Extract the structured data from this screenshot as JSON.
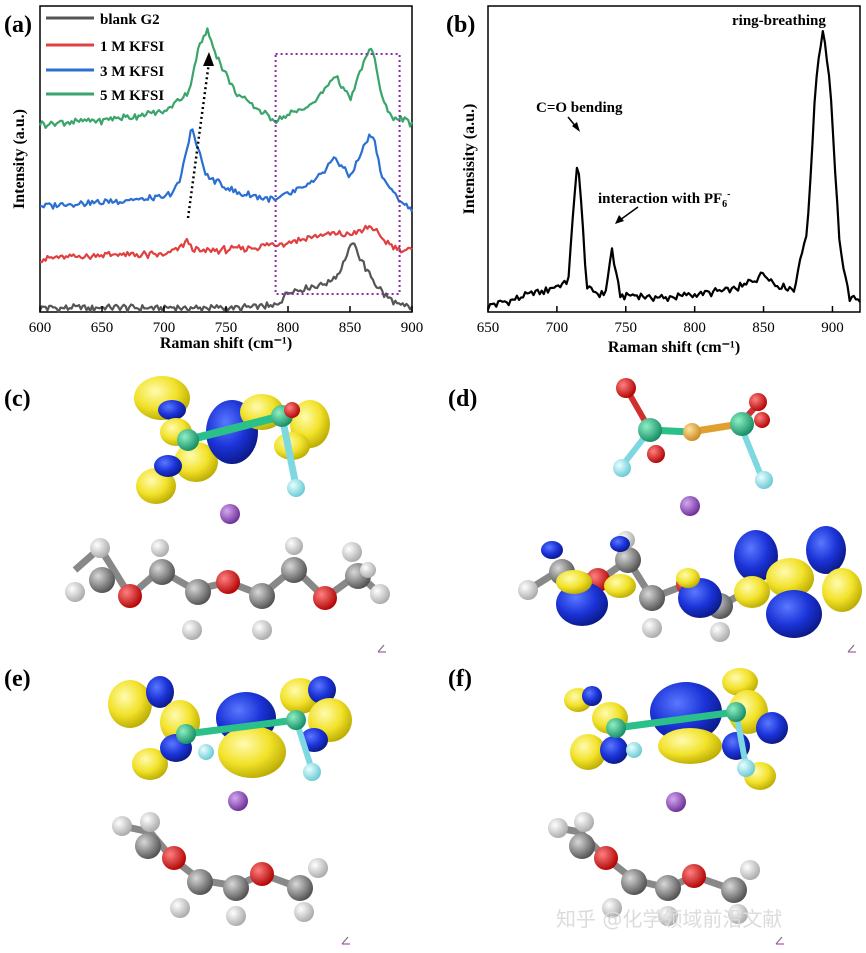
{
  "panel_labels": [
    "(a)",
    "(b)",
    "(c)",
    "(d)",
    "(e)",
    "(f)"
  ],
  "watermark": "知乎 @化学领域前沿文献",
  "chart_data": [
    {
      "type": "line",
      "panel": "(a)",
      "xlabel": "Raman shift (cm⁻¹)",
      "ylabel": "Intensity (a.u.)",
      "xlim": [
        600,
        900
      ],
      "xticks": [
        "600",
        "650",
        "700",
        "750",
        "800",
        "850",
        "900"
      ],
      "legend_position": "top-left",
      "highlight_box_x": [
        790,
        890
      ],
      "series": [
        {
          "name": "blank G2",
          "color": "#555555",
          "x": [
            600,
            700,
            760,
            790,
            800,
            830,
            840,
            852,
            862,
            870,
            880,
            890,
            900
          ],
          "y": [
            0.02,
            0.02,
            0.02,
            0.03,
            0.1,
            0.14,
            0.18,
            0.34,
            0.22,
            0.14,
            0.07,
            0.03,
            0.02
          ]
        },
        {
          "name": "1 M KFSI",
          "color": "#e04040",
          "x": [
            600,
            650,
            700,
            712,
            718,
            725,
            740,
            760,
            790,
            830,
            850,
            860,
            868,
            875,
            885,
            900
          ],
          "y": [
            0.26,
            0.28,
            0.28,
            0.31,
            0.35,
            0.3,
            0.3,
            0.31,
            0.33,
            0.38,
            0.38,
            0.4,
            0.42,
            0.36,
            0.32,
            0.3
          ]
        },
        {
          "name": "3 M KFSI",
          "color": "#2a6fd1",
          "x": [
            600,
            650,
            700,
            712,
            722,
            735,
            760,
            790,
            820,
            838,
            850,
            862,
            868,
            876,
            885,
            895,
            900
          ],
          "y": [
            0.52,
            0.54,
            0.56,
            0.62,
            0.9,
            0.66,
            0.58,
            0.55,
            0.63,
            0.76,
            0.66,
            0.82,
            0.88,
            0.66,
            0.58,
            0.52,
            0.5
          ]
        },
        {
          "name": "5 M KFSI",
          "color": "#3aa56a",
          "x": [
            600,
            650,
            700,
            720,
            728,
            735,
            745,
            760,
            790,
            820,
            838,
            850,
            862,
            868,
            876,
            885,
            895,
            900
          ],
          "y": [
            0.92,
            0.94,
            0.98,
            1.08,
            1.3,
            1.38,
            1.22,
            1.06,
            0.94,
            1.02,
            1.16,
            1.04,
            1.24,
            1.3,
            1.04,
            0.95,
            0.94,
            0.92
          ]
        }
      ]
    },
    {
      "type": "line",
      "panel": "(b)",
      "xlabel": "Raman shift (cm⁻¹)",
      "ylabel": "Intensisity (a.u.)",
      "xlim": [
        650,
        920
      ],
      "xticks": [
        "650",
        "700",
        "750",
        "800",
        "850",
        "900"
      ],
      "annotations": [
        {
          "text": "C=O bending",
          "x": 715,
          "y": 0.55
        },
        {
          "text": "interaction with PF",
          "sub": "6",
          "sup": "-",
          "x": 740,
          "y": 0.22
        },
        {
          "text": "ring-breathing",
          "x": 893,
          "y": 1.0
        }
      ],
      "series": [
        {
          "name": "",
          "color": "#000000",
          "x": [
            650,
            680,
            700,
            708,
            712,
            715,
            718,
            722,
            735,
            738,
            740,
            742,
            746,
            780,
            830,
            845,
            850,
            858,
            872,
            882,
            888,
            893,
            898,
            905,
            912,
            920
          ],
          "y": [
            0.02,
            0.06,
            0.09,
            0.1,
            0.35,
            0.55,
            0.35,
            0.08,
            0.06,
            0.16,
            0.22,
            0.16,
            0.06,
            0.05,
            0.08,
            0.12,
            0.14,
            0.1,
            0.08,
            0.3,
            0.82,
            1.0,
            0.82,
            0.25,
            0.05,
            0.04
          ]
        }
      ]
    }
  ]
}
